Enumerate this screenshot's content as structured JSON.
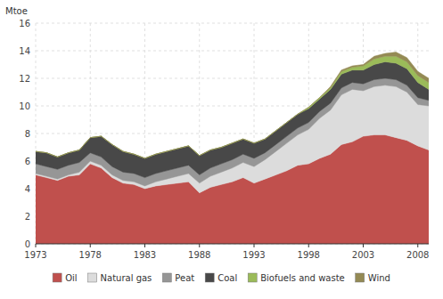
{
  "chart_data": {
    "type": "area",
    "stacked": true,
    "x": [
      1973,
      1974,
      1975,
      1976,
      1977,
      1978,
      1979,
      1980,
      1981,
      1982,
      1983,
      1984,
      1985,
      1986,
      1987,
      1988,
      1989,
      1990,
      1991,
      1992,
      1993,
      1994,
      1995,
      1996,
      1997,
      1998,
      1999,
      2000,
      2001,
      2002,
      2003,
      2004,
      2005,
      2006,
      2007,
      2008,
      2009
    ],
    "series": [
      {
        "name": "Oil",
        "color": "#c0504d",
        "values": [
          5.0,
          4.8,
          4.6,
          4.9,
          5.0,
          5.8,
          5.5,
          4.8,
          4.4,
          4.3,
          4.0,
          4.2,
          4.3,
          4.4,
          4.5,
          3.7,
          4.1,
          4.3,
          4.5,
          4.8,
          4.4,
          4.7,
          5.0,
          5.3,
          5.7,
          5.8,
          6.2,
          6.5,
          7.2,
          7.4,
          7.8,
          7.9,
          7.9,
          7.7,
          7.5,
          7.1,
          6.8
        ]
      },
      {
        "name": "Natural gas",
        "color": "#dcdcdc",
        "values": [
          0.1,
          0.1,
          0.1,
          0.1,
          0.2,
          0.2,
          0.2,
          0.2,
          0.2,
          0.2,
          0.2,
          0.3,
          0.4,
          0.5,
          0.6,
          0.7,
          0.8,
          0.9,
          1.0,
          1.1,
          1.2,
          1.4,
          1.7,
          2.0,
          2.2,
          2.5,
          2.9,
          3.2,
          3.6,
          3.8,
          3.3,
          3.5,
          3.6,
          3.7,
          3.5,
          3.0,
          3.2
        ]
      },
      {
        "name": "Peat",
        "color": "#969696",
        "values": [
          0.7,
          0.7,
          0.7,
          0.7,
          0.7,
          0.6,
          0.6,
          0.6,
          0.6,
          0.6,
          0.6,
          0.6,
          0.6,
          0.6,
          0.6,
          0.6,
          0.6,
          0.6,
          0.6,
          0.6,
          0.6,
          0.5,
          0.5,
          0.5,
          0.5,
          0.5,
          0.5,
          0.5,
          0.5,
          0.5,
          0.5,
          0.5,
          0.5,
          0.5,
          0.5,
          0.5,
          0.4
        ]
      },
      {
        "name": "Coal",
        "color": "#484848",
        "values": [
          0.9,
          1.0,
          0.9,
          0.9,
          0.9,
          1.1,
          1.5,
          1.6,
          1.5,
          1.4,
          1.4,
          1.4,
          1.4,
          1.4,
          1.4,
          1.4,
          1.3,
          1.2,
          1.2,
          1.1,
          1.1,
          1.0,
          1.0,
          1.0,
          1.0,
          1.0,
          0.9,
          1.0,
          1.0,
          0.9,
          1.0,
          1.1,
          1.2,
          1.2,
          1.2,
          1.1,
          0.8
        ]
      },
      {
        "name": "Biofuels and waste",
        "color": "#9bbb59",
        "values": [
          0.0,
          0.0,
          0.0,
          0.0,
          0.0,
          0.0,
          0.0,
          0.0,
          0.0,
          0.0,
          0.0,
          0.0,
          0.0,
          0.0,
          0.0,
          0.0,
          0.0,
          0.0,
          0.0,
          0.0,
          0.0,
          0.0,
          0.0,
          0.0,
          0.0,
          0.1,
          0.1,
          0.1,
          0.2,
          0.2,
          0.3,
          0.4,
          0.4,
          0.5,
          0.5,
          0.5,
          0.5
        ]
      },
      {
        "name": "Wind",
        "color": "#948a54",
        "values": [
          0.0,
          0.0,
          0.0,
          0.0,
          0.0,
          0.0,
          0.0,
          0.0,
          0.0,
          0.0,
          0.0,
          0.0,
          0.0,
          0.0,
          0.0,
          0.0,
          0.0,
          0.0,
          0.0,
          0.0,
          0.0,
          0.0,
          0.0,
          0.0,
          0.0,
          0.0,
          0.0,
          0.1,
          0.1,
          0.1,
          0.1,
          0.2,
          0.2,
          0.3,
          0.3,
          0.3,
          0.3
        ]
      }
    ],
    "y_label": "Mtoe",
    "xlim": [
      1973,
      2009
    ],
    "xticks": [
      1973,
      1978,
      1983,
      1988,
      1993,
      1998,
      2003,
      2008
    ],
    "ylim": [
      0,
      16
    ],
    "yticks": [
      0,
      2,
      4,
      6,
      8,
      10,
      12,
      14,
      16
    ],
    "grid": true,
    "legend": "bottom"
  }
}
